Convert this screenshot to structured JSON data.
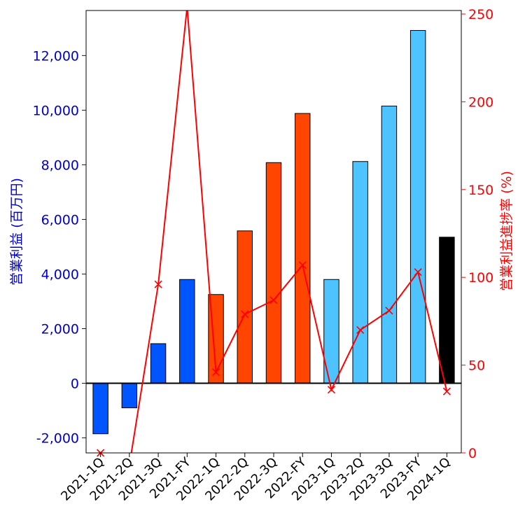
{
  "chart_data": {
    "type": "bar",
    "categories": [
      "2021-1Q",
      "2021-2Q",
      "2021-3Q",
      "2021-FY",
      "2022-1Q",
      "2022-2Q",
      "2022-3Q",
      "2022-FY",
      "2023-1Q",
      "2023-2Q",
      "2023-3Q",
      "2023-FY",
      "2024-1Q"
    ],
    "series": [
      {
        "name": "",
        "axis": "left",
        "values": [
          -1850,
          -900,
          1450,
          3800,
          3250,
          5580,
          8080,
          9880,
          3800,
          8120,
          10150,
          12920,
          5350
        ],
        "colors": [
          "#0055ff",
          "#0055ff",
          "#0055ff",
          "#0055ff",
          "#ff4500",
          "#ff4500",
          "#ff4500",
          "#ff4500",
          "#4dc3ff",
          "#4dc3ff",
          "#4dc3ff",
          "#4dc3ff",
          "#000000"
        ]
      },
      {
        "name": "",
        "axis": "right",
        "type": "line",
        "marker": "x",
        "color": "#ff0000",
        "values": [
          0,
          -7,
          96,
          254,
          46,
          79,
          87,
          107,
          36,
          70,
          81,
          103,
          35
        ]
      }
    ],
    "ylabel": "営業利益 (百万円)",
    "y2label": "営業利益進捗率 (%)",
    "ylim": [
      -2550,
      13650
    ],
    "y2lim": [
      0,
      252
    ],
    "yticks": [
      -2000,
      0,
      2000,
      4000,
      6000,
      8000,
      10000,
      12000
    ],
    "ytick_labels": [
      "-2,000",
      "0",
      "2,000",
      "4,000",
      "6,000",
      "8,000",
      "10,000",
      "12,000"
    ],
    "y2ticks": [
      0,
      50,
      100,
      150,
      200,
      250
    ],
    "y2tick_labels": [
      "0",
      "50",
      "100",
      "150",
      "200",
      "250"
    ],
    "grid": false,
    "legend": "none",
    "left_axis_color": "#0000cc",
    "right_axis_color": "#ff0000"
  }
}
